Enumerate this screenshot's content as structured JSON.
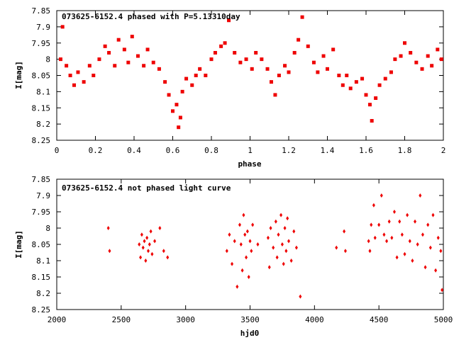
{
  "colors": {
    "marker": "#ee0000",
    "frame": "#000000",
    "background": "#ffffff"
  },
  "chart_data": [
    {
      "type": "scatter",
      "title": "073625-6152.4 phased with P=5.13310day",
      "xlabel": "phase",
      "ylabel": "I[mag]",
      "xlim": [
        0,
        2
      ],
      "ylim": [
        8.25,
        7.85
      ],
      "y_inverted": true,
      "xticks": [
        "0",
        "0.2",
        "0.4",
        "0.6",
        "0.8",
        "1",
        "1.2",
        "1.4",
        "1.6",
        "1.8",
        "2"
      ],
      "yticks": [
        "7.85",
        "7.9",
        "7.95",
        "8",
        "8.05",
        "8.1",
        "8.15",
        "8.2",
        "8.25"
      ],
      "marker": "square",
      "grid": false,
      "points": [
        [
          0.02,
          8.0
        ],
        [
          0.03,
          7.9
        ],
        [
          0.05,
          8.02
        ],
        [
          0.07,
          8.05
        ],
        [
          0.09,
          8.08
        ],
        [
          0.11,
          8.04
        ],
        [
          0.14,
          8.07
        ],
        [
          0.17,
          8.02
        ],
        [
          0.19,
          8.05
        ],
        [
          0.22,
          8.0
        ],
        [
          0.25,
          7.96
        ],
        [
          0.27,
          7.98
        ],
        [
          0.3,
          8.02
        ],
        [
          0.32,
          7.94
        ],
        [
          0.35,
          7.97
        ],
        [
          0.37,
          8.01
        ],
        [
          0.39,
          7.93
        ],
        [
          0.42,
          7.99
        ],
        [
          0.45,
          8.02
        ],
        [
          0.47,
          7.97
        ],
        [
          0.5,
          8.01
        ],
        [
          0.53,
          8.03
        ],
        [
          0.56,
          8.07
        ],
        [
          0.58,
          8.11
        ],
        [
          0.6,
          8.16
        ],
        [
          0.62,
          8.14
        ],
        [
          0.63,
          8.21
        ],
        [
          0.64,
          8.18
        ],
        [
          0.65,
          8.1
        ],
        [
          0.67,
          8.06
        ],
        [
          0.7,
          8.08
        ],
        [
          0.72,
          8.05
        ],
        [
          0.74,
          8.03
        ],
        [
          0.77,
          8.05
        ],
        [
          0.8,
          8.0
        ],
        [
          0.82,
          7.98
        ],
        [
          0.85,
          7.96
        ],
        [
          0.87,
          7.95
        ],
        [
          0.89,
          7.88
        ],
        [
          0.92,
          7.98
        ],
        [
          0.95,
          8.01
        ],
        [
          0.98,
          8.0
        ],
        [
          1.01,
          8.03
        ],
        [
          1.03,
          7.98
        ],
        [
          1.06,
          8.0
        ],
        [
          1.09,
          8.03
        ],
        [
          1.11,
          8.07
        ],
        [
          1.13,
          8.11
        ],
        [
          1.15,
          8.05
        ],
        [
          1.18,
          8.02
        ],
        [
          1.2,
          8.04
        ],
        [
          1.23,
          7.98
        ],
        [
          1.25,
          7.94
        ],
        [
          1.27,
          7.87
        ],
        [
          1.3,
          7.96
        ],
        [
          1.33,
          8.01
        ],
        [
          1.35,
          8.04
        ],
        [
          1.38,
          7.99
        ],
        [
          1.4,
          8.03
        ],
        [
          1.43,
          7.97
        ],
        [
          1.46,
          8.05
        ],
        [
          1.48,
          8.08
        ],
        [
          1.5,
          8.05
        ],
        [
          1.52,
          8.09
        ],
        [
          1.55,
          8.07
        ],
        [
          1.58,
          8.06
        ],
        [
          1.6,
          8.11
        ],
        [
          1.62,
          8.14
        ],
        [
          1.63,
          8.19
        ],
        [
          1.65,
          8.12
        ],
        [
          1.67,
          8.08
        ],
        [
          1.7,
          8.06
        ],
        [
          1.73,
          8.04
        ],
        [
          1.75,
          8.0
        ],
        [
          1.78,
          7.99
        ],
        [
          1.8,
          7.95
        ],
        [
          1.83,
          7.98
        ],
        [
          1.86,
          8.01
        ],
        [
          1.89,
          8.03
        ],
        [
          1.92,
          7.99
        ],
        [
          1.94,
          8.02
        ],
        [
          1.97,
          7.97
        ],
        [
          1.99,
          8.0
        ]
      ]
    },
    {
      "type": "scatter",
      "title": "073625-6152.4 not phased light curve",
      "xlabel": "hjd0",
      "ylabel": "I[mag]",
      "xlim": [
        2000,
        5000
      ],
      "ylim": [
        8.25,
        7.85
      ],
      "y_inverted": true,
      "xticks": [
        "2000",
        "2500",
        "3000",
        "3500",
        "4000",
        "4500",
        "5000"
      ],
      "yticks": [
        "7.85",
        "7.9",
        "7.95",
        "8",
        "8.05",
        "8.1",
        "8.15",
        "8.2",
        "8.25"
      ],
      "marker": "diamond",
      "grid": false,
      "points": [
        [
          2400,
          8.0
        ],
        [
          2410,
          8.07
        ],
        [
          2640,
          8.05
        ],
        [
          2650,
          8.09
        ],
        [
          2660,
          8.02
        ],
        [
          2670,
          8.06
        ],
        [
          2680,
          8.04
        ],
        [
          2690,
          8.1
        ],
        [
          2700,
          8.03
        ],
        [
          2710,
          8.07
        ],
        [
          2720,
          8.05
        ],
        [
          2730,
          8.01
        ],
        [
          2740,
          8.08
        ],
        [
          2760,
          8.04
        ],
        [
          2800,
          8.0
        ],
        [
          2830,
          8.07
        ],
        [
          2860,
          8.09
        ],
        [
          3320,
          8.07
        ],
        [
          3340,
          8.02
        ],
        [
          3360,
          8.11
        ],
        [
          3380,
          8.04
        ],
        [
          3400,
          8.18
        ],
        [
          3420,
          7.99
        ],
        [
          3430,
          8.05
        ],
        [
          3440,
          8.13
        ],
        [
          3450,
          7.96
        ],
        [
          3460,
          8.02
        ],
        [
          3470,
          8.09
        ],
        [
          3480,
          8.01
        ],
        [
          3490,
          8.15
        ],
        [
          3500,
          8.04
        ],
        [
          3510,
          8.07
        ],
        [
          3520,
          7.99
        ],
        [
          3560,
          8.05
        ],
        [
          3640,
          8.03
        ],
        [
          3650,
          8.12
        ],
        [
          3660,
          8.0
        ],
        [
          3680,
          8.06
        ],
        [
          3700,
          7.98
        ],
        [
          3710,
          8.09
        ],
        [
          3720,
          8.02
        ],
        [
          3740,
          7.96
        ],
        [
          3750,
          8.05
        ],
        [
          3760,
          8.11
        ],
        [
          3770,
          8.0
        ],
        [
          3780,
          8.07
        ],
        [
          3790,
          7.97
        ],
        [
          3800,
          8.04
        ],
        [
          3820,
          8.1
        ],
        [
          3840,
          8.01
        ],
        [
          3860,
          8.06
        ],
        [
          3890,
          8.21
        ],
        [
          4170,
          8.06
        ],
        [
          4230,
          8.01
        ],
        [
          4240,
          8.07
        ],
        [
          4420,
          8.04
        ],
        [
          4430,
          8.07
        ],
        [
          4440,
          7.99
        ],
        [
          4460,
          7.93
        ],
        [
          4470,
          8.03
        ],
        [
          4500,
          7.99
        ],
        [
          4520,
          7.9
        ],
        [
          4540,
          8.02
        ],
        [
          4560,
          8.04
        ],
        [
          4580,
          7.98
        ],
        [
          4600,
          8.03
        ],
        [
          4620,
          7.95
        ],
        [
          4640,
          8.09
        ],
        [
          4660,
          7.98
        ],
        [
          4680,
          8.02
        ],
        [
          4700,
          8.08
        ],
        [
          4720,
          7.96
        ],
        [
          4740,
          8.04
        ],
        [
          4760,
          8.1
        ],
        [
          4780,
          7.98
        ],
        [
          4800,
          8.05
        ],
        [
          4820,
          7.9
        ],
        [
          4840,
          8.02
        ],
        [
          4860,
          8.12
        ],
        [
          4880,
          7.99
        ],
        [
          4900,
          8.06
        ],
        [
          4920,
          7.96
        ],
        [
          4940,
          8.13
        ],
        [
          4960,
          8.03
        ],
        [
          4980,
          8.07
        ],
        [
          4990,
          8.19
        ]
      ]
    }
  ]
}
